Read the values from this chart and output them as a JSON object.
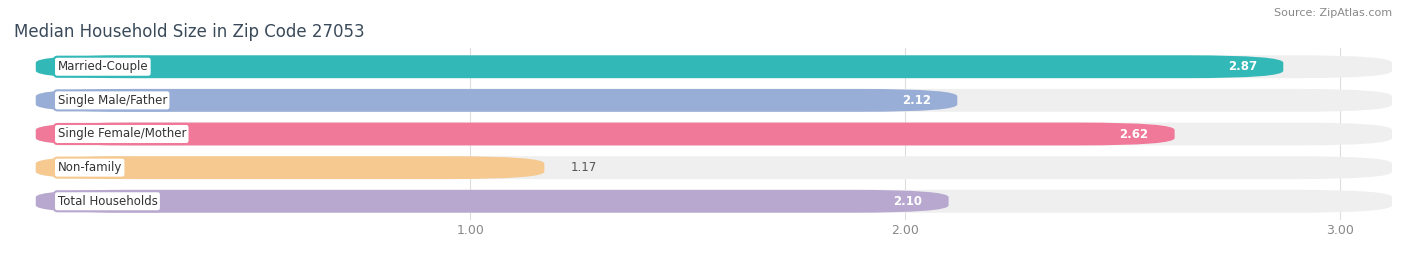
{
  "title": "Median Household Size in Zip Code 27053",
  "source": "Source: ZipAtlas.com",
  "categories": [
    "Married-Couple",
    "Single Male/Father",
    "Single Female/Mother",
    "Non-family",
    "Total Households"
  ],
  "values": [
    2.87,
    2.12,
    2.62,
    1.17,
    2.1
  ],
  "bar_colors": [
    "#33b8b8",
    "#99aed6",
    "#f07898",
    "#f5c990",
    "#b8a8d0"
  ],
  "background_color": "#ffffff",
  "bar_bg_color": "#efefef",
  "xlim_left": -0.05,
  "xlim_right": 3.12,
  "xstart": 0.0,
  "xticks": [
    1.0,
    2.0,
    3.0
  ],
  "bar_height": 0.68,
  "label_fontsize": 8.5,
  "value_fontsize": 8.5,
  "title_fontsize": 12,
  "source_fontsize": 8
}
